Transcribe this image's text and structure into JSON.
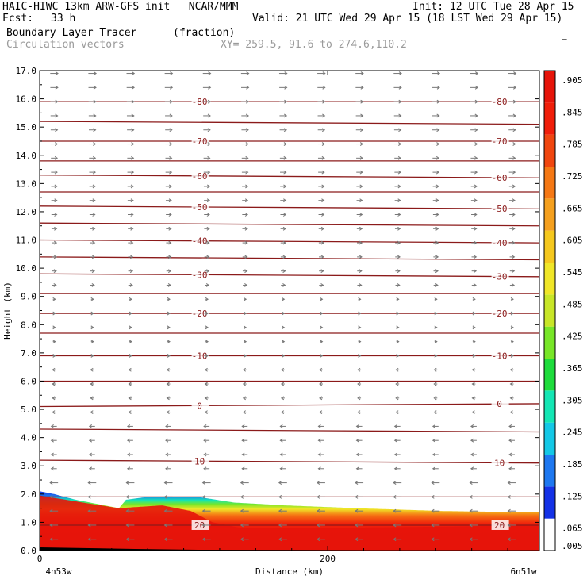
{
  "header": {
    "line1_left": "HAIC-HIWC 13km ARW-GFS init   NCAR/MMM",
    "line1_right": "Init: 12 UTC Tue 28 Apr 15",
    "fcst_label": "Fcst:",
    "fcst_value": "33 h",
    "valid": "Valid: 21 UTC Wed 29 Apr 15 (18 LST Wed 29 Apr 15)",
    "field_name": "Boundary Layer Tracer",
    "field_units": "(fraction)",
    "overlay_name": "Circulation vectors",
    "xy": "XY= 259.5, 91.6 to 274.6,110.2"
  },
  "chart_data": {
    "type": "heatmap",
    "title": "Boundary Layer Tracer",
    "xlabel": "Distance (km)",
    "ylabel": "Height (km)",
    "xlim": [
      0,
      347
    ],
    "ylim": [
      0,
      17
    ],
    "x_ticks": [
      {
        "value": 0,
        "label": "0"
      },
      {
        "value": 200,
        "label": "200"
      }
    ],
    "x_endpoint_labels": {
      "left": "4n53w",
      "right": "6n51w"
    },
    "y_ticks": [
      "0.0",
      "1.0",
      "2.0",
      "3.0",
      "4.0",
      "5.0",
      "6.0",
      "7.0",
      "8.0",
      "9.0",
      "10.0",
      "11.0",
      "12.0",
      "13.0",
      "14.0",
      "15.0",
      "16.0",
      "17.0"
    ],
    "colorbar": {
      "colors": [
        "#ffffff",
        "#1432e6",
        "#1e78f0",
        "#14c8e6",
        "#14e6b4",
        "#1edc3c",
        "#78e628",
        "#c8e628",
        "#f0e628",
        "#f5c81e",
        "#f5a01e",
        "#f57814",
        "#f0460f",
        "#f01e0a",
        "#e6140a"
      ],
      "labels": [
        ".005",
        ".065",
        ".125",
        ".185",
        ".245",
        ".305",
        ".365",
        ".425",
        ".485",
        ".545",
        ".605",
        ".665",
        ".725",
        ".785",
        ".845",
        ".905",
        "–"
      ]
    },
    "temperature_contours": [
      {
        "label": "20",
        "y_left": 0.9,
        "y_right": 0.9
      },
      {
        "label": "",
        "y_left": 1.9,
        "y_right": 1.9
      },
      {
        "label": "10",
        "y_left": 3.2,
        "y_right": 3.1
      },
      {
        "label": "",
        "y_left": 4.3,
        "y_right": 4.2
      },
      {
        "label": "0",
        "y_left": 5.1,
        "y_right": 5.2
      },
      {
        "label": "",
        "y_left": 6.0,
        "y_right": 6.0
      },
      {
        "label": "-10",
        "y_left": 6.9,
        "y_right": 6.9
      },
      {
        "label": "",
        "y_left": 7.7,
        "y_right": 7.7
      },
      {
        "label": "-20",
        "y_left": 8.4,
        "y_right": 8.4
      },
      {
        "label": "",
        "y_left": 9.1,
        "y_right": 9.1
      },
      {
        "label": "-30",
        "y_left": 9.8,
        "y_right": 9.7
      },
      {
        "label": "",
        "y_left": 10.4,
        "y_right": 10.3
      },
      {
        "label": "-40",
        "y_left": 11.0,
        "y_right": 10.9
      },
      {
        "label": "",
        "y_left": 11.6,
        "y_right": 11.5
      },
      {
        "label": "-50",
        "y_left": 12.2,
        "y_right": 12.1
      },
      {
        "label": "",
        "y_left": 12.7,
        "y_right": 12.7
      },
      {
        "label": "-60",
        "y_left": 13.3,
        "y_right": 13.2
      },
      {
        "label": "",
        "y_left": 13.8,
        "y_right": 13.8
      },
      {
        "label": "-70",
        "y_left": 14.5,
        "y_right": 14.5
      },
      {
        "label": "",
        "y_left": 15.2,
        "y_right": 15.1
      },
      {
        "label": "-80",
        "y_left": 15.9,
        "y_right": 15.9
      }
    ],
    "tracer_top_km": [
      {
        "x": 0,
        "top": 2.1
      },
      {
        "x": 10,
        "top": 2.0
      },
      {
        "x": 25,
        "top": 1.8
      },
      {
        "x": 45,
        "top": 1.6
      },
      {
        "x": 55,
        "top": 1.5
      },
      {
        "x": 60,
        "top": 1.8
      },
      {
        "x": 75,
        "top": 1.9
      },
      {
        "x": 110,
        "top": 1.9
      },
      {
        "x": 135,
        "top": 1.7
      },
      {
        "x": 170,
        "top": 1.6
      },
      {
        "x": 220,
        "top": 1.5
      },
      {
        "x": 280,
        "top": 1.4
      },
      {
        "x": 347,
        "top": 1.35
      }
    ],
    "tracer_core_top_km": [
      {
        "x": 0,
        "top": 1.95
      },
      {
        "x": 30,
        "top": 1.7
      },
      {
        "x": 55,
        "top": 1.5
      },
      {
        "x": 85,
        "top": 1.6
      },
      {
        "x": 105,
        "top": 1.4
      },
      {
        "x": 120,
        "top": 1.0
      },
      {
        "x": 140,
        "top": 0.8
      },
      {
        "x": 200,
        "top": 0.8
      },
      {
        "x": 280,
        "top": 0.85
      },
      {
        "x": 347,
        "top": 0.9
      }
    ],
    "grid": false,
    "legend": "right colorbar"
  }
}
